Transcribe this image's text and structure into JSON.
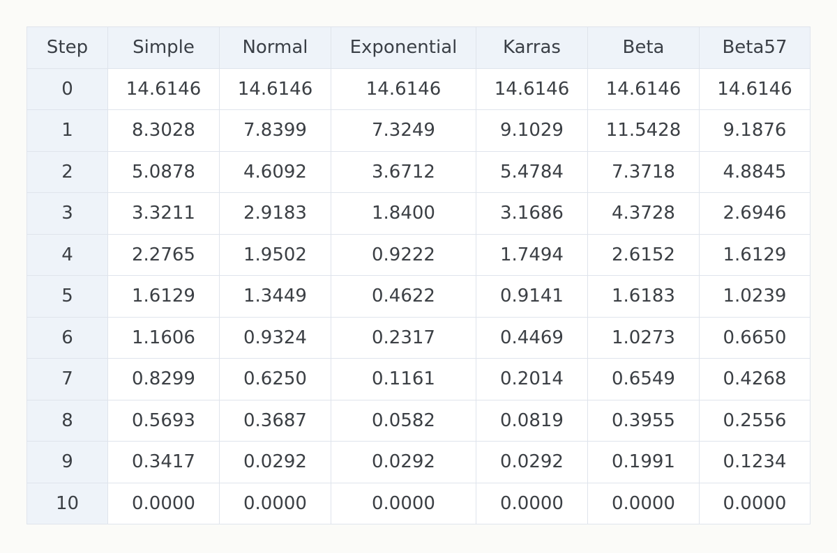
{
  "table": {
    "columns": [
      "Step",
      "Simple",
      "Normal",
      "Exponential",
      "Karras",
      "Beta",
      "Beta57"
    ],
    "rows": [
      [
        "0",
        "14.6146",
        "14.6146",
        "14.6146",
        "14.6146",
        "14.6146",
        "14.6146"
      ],
      [
        "1",
        "8.3028",
        "7.8399",
        "7.3249",
        "9.1029",
        "11.5428",
        "9.1876"
      ],
      [
        "2",
        "5.0878",
        "4.6092",
        "3.6712",
        "5.4784",
        "7.3718",
        "4.8845"
      ],
      [
        "3",
        "3.3211",
        "2.9183",
        "1.8400",
        "3.1686",
        "4.3728",
        "2.6946"
      ],
      [
        "4",
        "2.2765",
        "1.9502",
        "0.9222",
        "1.7494",
        "2.6152",
        "1.6129"
      ],
      [
        "5",
        "1.6129",
        "1.3449",
        "0.4622",
        "0.9141",
        "1.6183",
        "1.0239"
      ],
      [
        "6",
        "1.1606",
        "0.9324",
        "0.2317",
        "0.4469",
        "1.0273",
        "0.6650"
      ],
      [
        "7",
        "0.8299",
        "0.6250",
        "0.1161",
        "0.2014",
        "0.6549",
        "0.4268"
      ],
      [
        "8",
        "0.5693",
        "0.3687",
        "0.0582",
        "0.0819",
        "0.3955",
        "0.2556"
      ],
      [
        "9",
        "0.3417",
        "0.0292",
        "0.0292",
        "0.0292",
        "0.1991",
        "0.1234"
      ],
      [
        "10",
        "0.0000",
        "0.0000",
        "0.0000",
        "0.0000",
        "0.0000",
        "0.0000"
      ]
    ]
  },
  "colors": {
    "header_bg": "#eef3f9",
    "step_col_bg": "#eef3f9",
    "border": "#dfe4ec",
    "text": "#3b3f44",
    "page_bg": "#fbfbf8"
  }
}
